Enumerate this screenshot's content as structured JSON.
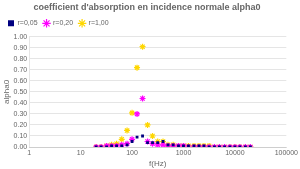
{
  "chart_data": {
    "type": "scatter",
    "title": "coefficient d'absorption en incidence normale alpha0",
    "x_label": "f(Hz)",
    "y_label": "alpha0",
    "log": "x",
    "xlim": [
      1,
      100000
    ],
    "xticks": [
      1,
      10,
      100,
      1000,
      10000,
      100000
    ],
    "ylim": [
      0,
      1
    ],
    "yticks": [
      {
        "value": 0,
        "label": "0.00"
      },
      {
        "value": 0.1,
        "label": "0.10"
      },
      {
        "value": 0.2,
        "label": "0.20"
      },
      {
        "value": 0.3,
        "label": "0.30"
      },
      {
        "value": 0.4,
        "label": "0.40"
      },
      {
        "value": 0.5,
        "label": "0.50"
      },
      {
        "value": 0.6,
        "label": "0.60"
      },
      {
        "value": 0.7,
        "label": "0.70"
      },
      {
        "value": 0.8,
        "label": "0.80"
      },
      {
        "value": 0.9,
        "label": "0.90"
      },
      {
        "value": 1,
        "label": "1.00"
      }
    ],
    "grid": "y",
    "legend": "upper left",
    "x": [
      20,
      25,
      32,
      40,
      50,
      63,
      80,
      100,
      125,
      160,
      200,
      250,
      315,
      400,
      500,
      630,
      800,
      1000,
      1250,
      1600,
      2000,
      2500,
      3150,
      4000,
      5000,
      6300,
      8000,
      10000,
      12500,
      16000,
      20000
    ],
    "series": [
      {
        "name": "r=0,05",
        "color": "#000080",
        "marker": "square",
        "values": [
          0.0,
          0.0,
          0.0,
          0.01,
          0.01,
          0.01,
          0.02,
          0.05,
          0.09,
          0.1,
          0.04,
          0.04,
          0.04,
          0.05,
          0.02,
          0.02,
          0.01,
          0.01,
          0.01,
          0.01,
          0.01,
          0.01,
          0.0,
          0.0,
          0.0,
          0.0,
          0.0,
          0.0,
          0.0,
          0.0,
          0.0
        ]
      },
      {
        "name": "r=0,20",
        "color": "#FF00FF",
        "marker": "star",
        "values": [
          0.0,
          0.0,
          0.01,
          0.01,
          0.01,
          0.02,
          0.03,
          0.07,
          0.3,
          0.44,
          0.05,
          0.03,
          0.02,
          0.02,
          0.01,
          0.01,
          0.01,
          0.01,
          0.0,
          0.0,
          0.0,
          0.0,
          0.0,
          0.0,
          0.0,
          0.0,
          0.0,
          0.0,
          0.0,
          0.0,
          0.0
        ]
      },
      {
        "name": "r=1,00",
        "color": "#FFD700",
        "marker": "star",
        "values": [
          0.0,
          0.0,
          0.01,
          0.02,
          0.03,
          0.07,
          0.15,
          0.31,
          0.72,
          0.91,
          0.2,
          0.1,
          0.05,
          0.05,
          0.02,
          0.02,
          0.01,
          0.01,
          0.01,
          0.01,
          0.01,
          0.01,
          0.01,
          0.0,
          0.0,
          0.0,
          0.0,
          0.0,
          0.0,
          0.0,
          0.0
        ]
      }
    ]
  }
}
